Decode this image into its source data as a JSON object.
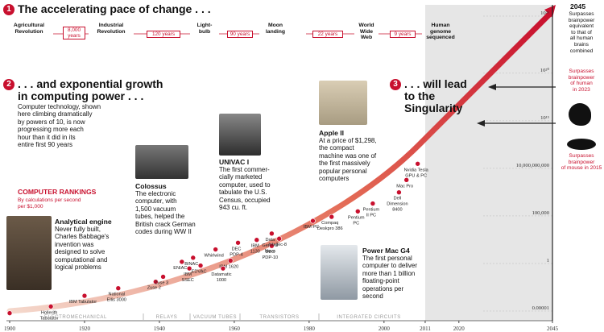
{
  "colors": {
    "accent": "#c8102e",
    "shade": "#e6e6e6",
    "dark": "#111111"
  },
  "header1": {
    "num": "1",
    "title": "The accelerating pace of change . . ."
  },
  "timeline": {
    "events": [
      "Agricultural\nRevolution",
      "Industrial\nRevolution",
      "Light-\nbulb",
      "Moon\nlanding",
      "World\nWide\nWeb",
      "Human\ngenome\nsequenced"
    ],
    "intervals": [
      "8,000\nyears",
      "120 years",
      "90 years",
      "22 years",
      "9 years"
    ]
  },
  "header2": {
    "num": "2",
    "title": ". . . and exponential growth\nin computing power . . .",
    "body": "Computer technology, shown\nhere climbing dramatically\nby powers of 10, is now\nprogressing more each\nhour than it did in its\nentire first 90 years"
  },
  "header3": {
    "num": "3",
    "title": ". . . will lead\nto the\nSingularity"
  },
  "rankings": {
    "title": "COMPUTER RANKINGS",
    "subtitle": "By calculations per second\nper $1,000"
  },
  "callouts": {
    "analytical": {
      "title": "Analytical engine",
      "body": "Never fully built,\nCharles Babbage's\ninvention was\ndesigned to solve\ncomputational and\nlogical problems"
    },
    "colossus": {
      "title": "Colossus",
      "body": "The electronic\ncomputer, with\n1,500 vacuum\ntubes, helped the\nBritish crack German\ncodes during WW II"
    },
    "univac": {
      "title": "UNIVAC I",
      "body": "The first commer-\ncially marketed\ncomputer, used to\ntabulate the U.S.\nCensus, occupied\n943 cu. ft."
    },
    "apple": {
      "title": "Apple II",
      "body": "At a price of $1,298,\nthe compact\nmachine was one of\nthe first massively\npopular personal\ncomputers"
    },
    "powermac": {
      "title": "Power Mac G4",
      "body": "The first personal\ncomputer to deliver\nmore than 1 billion\nfloating-point\noperations per\nsecond"
    }
  },
  "right_panel": {
    "year": "2045",
    "t2045": "Surpasses\nbrainpower\nequivalent\nto that of\nall human\nbrains\ncombined",
    "t2023": "Surpasses\nbrainpower\nof human\nin 2023",
    "t2015": "Surpasses\nbrainpower\nof mouse in 2015"
  },
  "eras": [
    "ELECTROMECHANICAL",
    "RELAYS",
    "VACUUM TUBES",
    "TRANSISTORS",
    "INTEGRATED CIRCUITS"
  ],
  "chart_data": {
    "type": "scatter",
    "scale": "log",
    "x_ticks": [
      "1900",
      "1920",
      "1940",
      "1960",
      "1980",
      "2000",
      "2011",
      "2020",
      "2045"
    ],
    "y_ticks": [
      "10²⁶",
      "10²⁰",
      "10¹⁵",
      "10,000,000,000",
      "100,000",
      "1",
      "0.00001"
    ],
    "xlim": [
      1900,
      2045
    ],
    "series": [
      {
        "points": [
          {
            "label": "",
            "x": 1900,
            "y": 6e-06
          },
          {
            "label": "Hollerith\nTabulator",
            "x": 1911,
            "y": 3e-05
          },
          {
            "label": "IBM Tabulator",
            "x": 1920,
            "y": 0.0004
          },
          {
            "label": "National\nEllis 3000",
            "x": 1929,
            "y": 0.0025
          },
          {
            "label": "Zuse 2",
            "x": 1939,
            "y": 0.012
          },
          {
            "label": "Zuse 3",
            "x": 1941,
            "y": 0.04
          },
          {
            "label": "ENIAC",
            "x": 1946,
            "y": 1.5
          },
          {
            "label": "BINAC",
            "x": 1949,
            "y": 4
          },
          {
            "label": "IBM\nSSEC",
            "x": 1948,
            "y": 0.3
          },
          {
            "label": "EDVAC",
            "x": 1951,
            "y": 0.6
          },
          {
            "label": "Whirlwind",
            "x": 1955,
            "y": 30
          },
          {
            "label": "IBM 1620",
            "x": 1959,
            "y": 2
          },
          {
            "label": "Datamatic\n1000",
            "x": 1957,
            "y": 0.3
          },
          {
            "label": "DEC\nPDP-4",
            "x": 1961,
            "y": 150
          },
          {
            "label": "IBM\n1130",
            "x": 1966,
            "y": 300
          },
          {
            "label": "Data\nGeneral\nNova",
            "x": 1970,
            "y": 1400
          },
          {
            "label": "DEC\nPDP-10",
            "x": 1970,
            "y": 70
          },
          {
            "label": "Intellec-8",
            "x": 1972,
            "y": 400
          },
          {
            "label": "IBM PC",
            "x": 1981,
            "y": 30000
          },
          {
            "label": "Compaq\nDeskpro 386",
            "x": 1986,
            "y": 80000
          },
          {
            "label": "Pentium\nPC",
            "x": 1993,
            "y": 300000
          },
          {
            "label": "Pentium\nII PC",
            "x": 1997,
            "y": 2000000
          },
          {
            "label": "Dell\nDimension\n8400",
            "x": 2004,
            "y": 30000000
          },
          {
            "label": "Mac Pro",
            "x": 2006,
            "y": 600000000
          },
          {
            "label": "Nvidia Tesla\nGPU & PC",
            "x": 2009,
            "y": 30000000000
          }
        ]
      }
    ]
  }
}
